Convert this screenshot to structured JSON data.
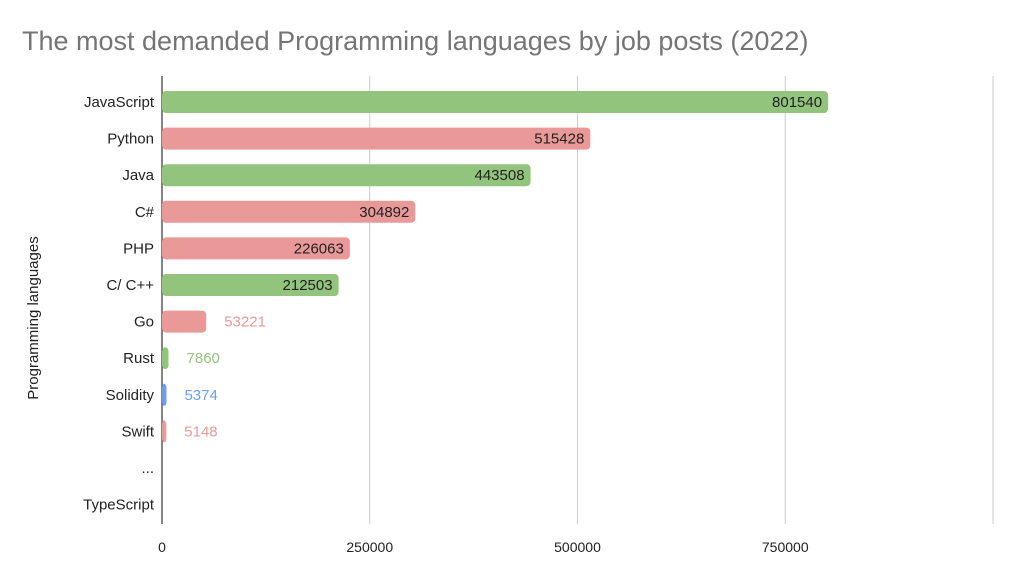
{
  "chart_data": {
    "type": "bar",
    "orientation": "horizontal",
    "title": "The most demanded Programming languages by job posts (2022)",
    "xlabel": "",
    "ylabel": "Programming languages",
    "xlim": [
      0,
      1000000
    ],
    "xticks": [
      0,
      250000,
      500000,
      750000
    ],
    "xtick_labels": [
      "0",
      "250000",
      "500000",
      "750000"
    ],
    "grid": "vertical",
    "categories": [
      "JavaScript",
      "Python",
      "Java",
      "C#",
      "PHP",
      "C/ C++",
      "Go",
      "Rust",
      "Solidity",
      "Swift",
      "...",
      "TypeScript"
    ],
    "values": [
      801540,
      515428,
      443508,
      304892,
      226063,
      212503,
      53221,
      7860,
      5374,
      5148,
      null,
      null
    ],
    "value_labels": [
      "801540",
      "515428",
      "443508",
      "304892",
      "226063",
      "212503",
      "53221",
      "7860",
      "5374",
      "5148",
      "",
      ""
    ],
    "colors": [
      "#93c47d",
      "#ea9999",
      "#93c47d",
      "#ea9999",
      "#ea9999",
      "#93c47d",
      "#ea9999",
      "#93c47d",
      "#6d9eeb",
      "#ea9999",
      "",
      ""
    ]
  }
}
